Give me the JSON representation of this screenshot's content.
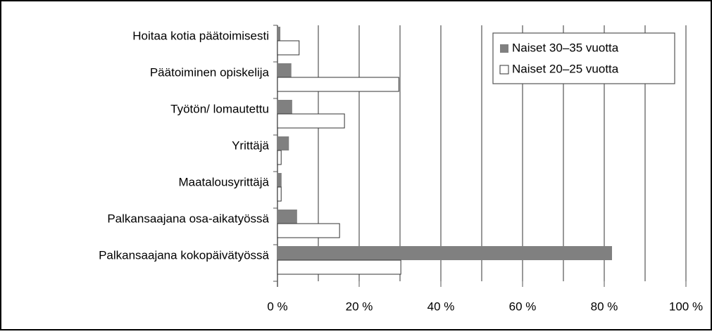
{
  "chart_data": {
    "type": "hbar",
    "categories": [
      "Hoitaa kotia päätoimisesti",
      "Päätoiminen opiskelija",
      "Työtön/ lomautettu",
      "Yrittäjä",
      "Maatalousyrittäjä",
      "Palkansaajana osa-aikatyössä",
      "Palkansaajana kokopäivätyössä"
    ],
    "series": [
      {
        "name": "Naiset 30–35 vuotta",
        "color": "#808080",
        "values": [
          0.7,
          3.4,
          3.6,
          2.8,
          1.0,
          4.8,
          81.9
        ]
      },
      {
        "name": "Naiset 20–25 vuotta",
        "color": "#ffffff",
        "values": [
          5.3,
          29.7,
          16.4,
          0.9,
          0.9,
          15.2,
          30.2
        ]
      }
    ],
    "xlim": [
      0,
      100
    ],
    "xticks": [
      {
        "value": 0,
        "label": "0 %"
      },
      {
        "value": 20,
        "label": "20 %"
      },
      {
        "value": 40,
        "label": "40 %"
      },
      {
        "value": 60,
        "label": "60 %"
      },
      {
        "value": 80,
        "label": "80 %"
      },
      {
        "value": 100,
        "label": "100 %"
      }
    ],
    "minor_xticks": [
      10,
      30,
      50,
      70,
      90
    ],
    "grid": true,
    "legend": "upper right"
  }
}
